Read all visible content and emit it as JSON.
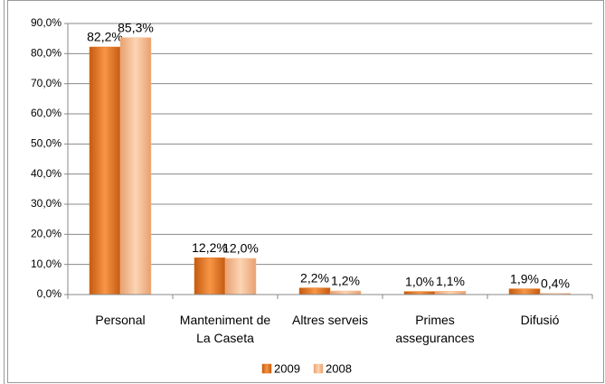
{
  "chart_data": {
    "type": "bar",
    "categories": [
      "Personal",
      "Manteniment de La Caseta",
      "Altres serveis",
      "Primes assegurances",
      "Difusió"
    ],
    "series": [
      {
        "name": "2009",
        "color": "#e46c0a",
        "values": [
          82.2,
          12.2,
          2.2,
          1.0,
          1.9
        ],
        "value_labels": [
          "82,2%",
          "12,2%",
          "2,2%",
          "1,0%",
          "1,9%"
        ]
      },
      {
        "name": "2008",
        "color": "#f9b98a",
        "values": [
          85.3,
          12.0,
          1.2,
          1.1,
          0.4
        ],
        "value_labels": [
          "85,3%",
          "12,0%",
          "1,2%",
          "1,1%",
          "0,4%"
        ]
      }
    ],
    "ylim": [
      0,
      90
    ],
    "yticks": [
      {
        "value": 0,
        "label": "0,0%"
      },
      {
        "value": 10,
        "label": "10,0%"
      },
      {
        "value": 20,
        "label": "20,0%"
      },
      {
        "value": 30,
        "label": "30,0%"
      },
      {
        "value": 40,
        "label": "40,0%"
      },
      {
        "value": 50,
        "label": "50,0%"
      },
      {
        "value": 60,
        "label": "60,0%"
      },
      {
        "value": 70,
        "label": "70,0%"
      },
      {
        "value": 80,
        "label": "80,0%"
      },
      {
        "value": 90,
        "label": "90,0%"
      }
    ],
    "grid": true,
    "legend": "bottom"
  }
}
